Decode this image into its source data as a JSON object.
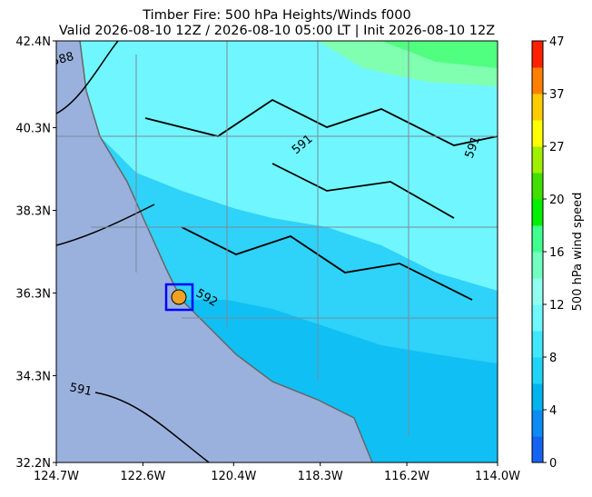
{
  "map": {
    "title": "Timber Fire: 500 hPa Heights/Winds f000",
    "subtitle": "Valid 2026-08-10 12Z / 2026-08-10 05:00 LT | Init 2026-08-10 12Z",
    "xlim": [
      -124.7,
      -114.0
    ],
    "ylim": [
      32.2,
      42.4
    ],
    "xticks": [
      {
        "value": -124.7,
        "label": "124.7W"
      },
      {
        "value": -122.6,
        "label": "122.6W"
      },
      {
        "value": -120.4,
        "label": "120.4W"
      },
      {
        "value": -118.3,
        "label": "118.3W"
      },
      {
        "value": -116.2,
        "label": "116.2W"
      },
      {
        "value": -114.0,
        "label": "114.0W"
      }
    ],
    "yticks": [
      {
        "value": 32.2,
        "label": "32.2N"
      },
      {
        "value": 34.3,
        "label": "34.3N"
      },
      {
        "value": 36.3,
        "label": "36.3N"
      },
      {
        "value": 38.3,
        "label": "38.3N"
      },
      {
        "value": 40.3,
        "label": "40.3N"
      },
      {
        "value": 42.4,
        "label": "42.4N"
      }
    ],
    "contour_labels": [
      "588",
      "591",
      "592",
      "591",
      "591"
    ],
    "colorbar": {
      "label": "500 hPa wind speed",
      "ticks": [
        0,
        4,
        8,
        12,
        16,
        20,
        27,
        37,
        47
      ],
      "colors": [
        "#1464f4",
        "#0a8cf4",
        "#00b4f0",
        "#20d4f8",
        "#40e8ff",
        "#70f8ff",
        "#90fff0",
        "#70ffc0",
        "#40ff90",
        "#00f000",
        "#40e000",
        "#a0f000",
        "#ffff00",
        "#ffcc00",
        "#ff8000",
        "#ff2000"
      ]
    }
  }
}
